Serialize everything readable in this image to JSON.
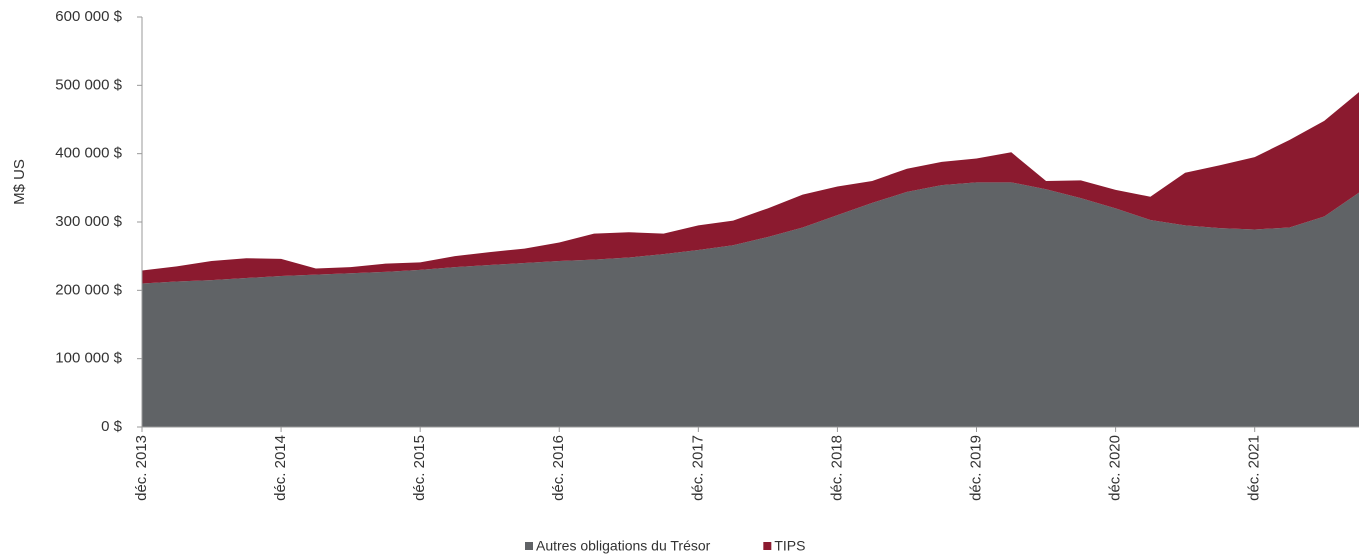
{
  "chart_data": {
    "type": "area",
    "stacked": true,
    "y_label": "M$ US",
    "categories": [
      "déc. 2013",
      null,
      null,
      null,
      "déc. 2014",
      null,
      null,
      null,
      "déc. 2015",
      null,
      null,
      null,
      "déc. 2016",
      null,
      null,
      null,
      "déc. 2017",
      null,
      null,
      null,
      "déc. 2018",
      null,
      null,
      null,
      "déc. 2019",
      null,
      null,
      null,
      "déc. 2020",
      null,
      null,
      null,
      "déc. 2021",
      null,
      null,
      null
    ],
    "series": [
      {
        "name": "Autres obligations du Trésor",
        "color": "#606366",
        "values": [
          210000,
          213000,
          215000,
          218000,
          221000,
          223000,
          225000,
          227000,
          230000,
          234000,
          237000,
          240000,
          243000,
          245000,
          248000,
          253000,
          259000,
          266000,
          278000,
          292000,
          310000,
          328000,
          344000,
          354000,
          358000,
          358000,
          348000,
          335000,
          320000,
          303000,
          295000,
          291000,
          289000,
          292000,
          308000,
          343000
        ]
      },
      {
        "name": "TIPS",
        "color": "#8b1a2f",
        "values": [
          19000,
          22000,
          28000,
          29000,
          25000,
          9000,
          9000,
          12000,
          11000,
          16000,
          19000,
          21000,
          27000,
          38000,
          37000,
          30000,
          36000,
          36000,
          42000,
          48000,
          42000,
          32000,
          34000,
          34000,
          35000,
          44000,
          12000,
          26000,
          27000,
          34000,
          77000,
          92000,
          106000,
          128000,
          140000,
          147000
        ]
      }
    ],
    "ylim": [
      0,
      600000
    ],
    "yticks": [
      {
        "value": 0,
        "label": "0 $"
      },
      {
        "value": 100000,
        "label": "100 000 $"
      },
      {
        "value": 200000,
        "label": "200 000 $"
      },
      {
        "value": 300000,
        "label": "300 000 $"
      },
      {
        "value": 400000,
        "label": "400 000 $"
      },
      {
        "value": 500000,
        "label": "500 000 $"
      },
      {
        "value": 600000,
        "label": "600 000 $"
      }
    ],
    "legend": "bottom"
  }
}
